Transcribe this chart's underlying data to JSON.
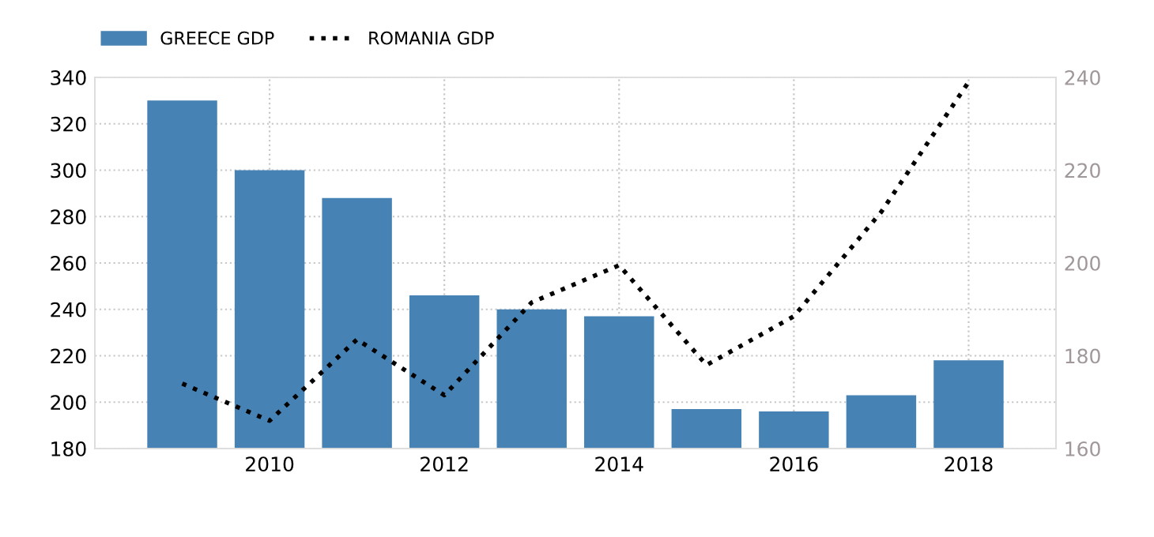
{
  "chart_data": {
    "type": "bar",
    "x": [
      2009,
      2010,
      2011,
      2012,
      2013,
      2014,
      2015,
      2016,
      2017,
      2018
    ],
    "series": [
      {
        "name": "GREECE GDP",
        "color": "#4682b4",
        "values": [
          330,
          300,
          288,
          246,
          240,
          237,
          197,
          196,
          203,
          218
        ]
      },
      {
        "name": "ROMANIA GDP",
        "type": "line",
        "axis": "y2",
        "color": "#000000",
        "line_style": "dotted",
        "values": [
          174,
          166,
          183.5,
          171.5,
          191.5,
          199.5,
          178,
          188.5,
          211,
          239
        ]
      }
    ],
    "xlim": [
      2008,
      2019
    ],
    "xticks": [
      2010,
      2012,
      2014,
      2016,
      2018
    ],
    "ylim": [
      180,
      340
    ],
    "yticks": [
      180,
      200,
      220,
      240,
      260,
      280,
      300,
      320,
      340
    ],
    "y2lim": [
      160,
      240
    ],
    "y2ticks": [
      160,
      180,
      200,
      220,
      240
    ],
    "grid": true,
    "legend": "top left"
  }
}
